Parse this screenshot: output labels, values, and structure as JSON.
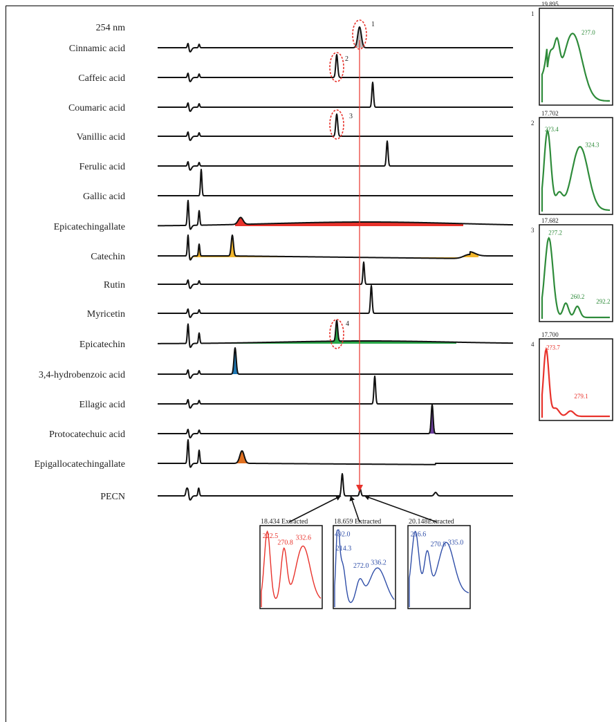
{
  "chart_data": {
    "type": "line",
    "wavelength_label": "254 nm",
    "traces": [
      {
        "name": "Cinnamic acid"
      },
      {
        "name": "Caffeic acid"
      },
      {
        "name": "Coumaric acid"
      },
      {
        "name": "Vanillic acid"
      },
      {
        "name": "Ferulic acid"
      },
      {
        "name": "Gallic acid"
      },
      {
        "name": "Epicatechingallate",
        "fill": "#e8322b"
      },
      {
        "name": "Catechin",
        "fill": "#f2b62c"
      },
      {
        "name": "Rutin"
      },
      {
        "name": "Myricetin"
      },
      {
        "name": "Epicatechin",
        "fill": "#2aa84a"
      },
      {
        "name": "3,4-hydrobenzoic acid",
        "fill": "#1f78b4"
      },
      {
        "name": "Ellagic acid"
      },
      {
        "name": "Protocatechuic acid",
        "fill": "#6a3d9a"
      },
      {
        "name": "Epigallocatechingallate",
        "fill": "#e07020"
      },
      {
        "name": "PECN"
      }
    ],
    "marked_peaks": [
      "1",
      "2",
      "3",
      "4"
    ],
    "reference_spectra": [
      {
        "num": "1",
        "time": "19.895",
        "labels": [
          "2?7.0"
        ],
        "color": "#2e8b3a"
      },
      {
        "num": "2",
        "time": "17.702",
        "labels": [
          "2?3.4",
          "324.3"
        ],
        "color": "#2e8b3a"
      },
      {
        "num": "3",
        "time": "17.682",
        "labels": [
          "2?7.2",
          "260.2",
          "292.2"
        ],
        "color": "#2e8b3a"
      },
      {
        "num": "4",
        "time": "17.700",
        "labels": [
          "2?3.7",
          "279.1"
        ],
        "color": "#e8322b"
      }
    ],
    "extracted_spectra": [
      {
        "title": "18.434 Extracted",
        "labels": [
          "222.5",
          "270.8",
          "332.6"
        ],
        "color": "#e8322b"
      },
      {
        "title": "18.659 Extracted",
        "labels": [
          "492.0",
          "214.3",
          "272.0",
          "336.2"
        ],
        "color": "#2f4ea8"
      },
      {
        "title": "20.148Extracted",
        "labels": [
          "216.6",
          "270.8",
          "335.0"
        ],
        "color": "#2f4ea8"
      }
    ]
  }
}
